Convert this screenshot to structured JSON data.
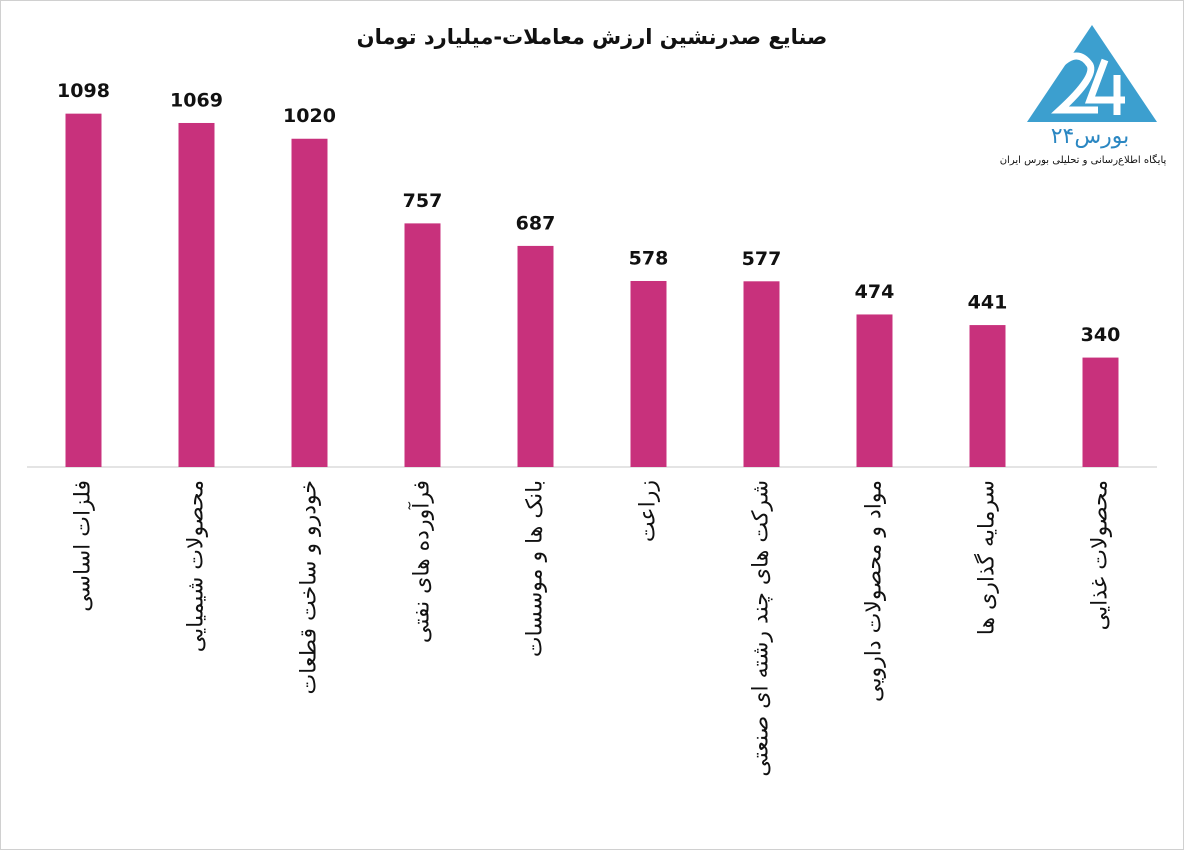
{
  "chart_data": {
    "type": "bar",
    "title": "صنایع صدرنشین ارزش معاملات-میلیارد تومان",
    "categories": [
      "فلزات اساسی",
      "محصولات شیمیایی",
      "خودرو و ساخت قطعات",
      "فرآورده های نفتی",
      "بانک ها و موسسات",
      "زراعت",
      "شرکت های چند رشته ای صنعتی",
      "مواد و محصولات دارویی",
      "سرمایه گذاری ها",
      "محصولات غذایی"
    ],
    "values": [
      1098,
      1069,
      1020,
      757,
      687,
      578,
      577,
      474,
      441,
      340
    ],
    "color": "#c8317c",
    "ylim": [
      0,
      1100
    ],
    "grid": false,
    "annotations": [
      "بورس۲۴",
      "پایگاه اطلاع‌رسانی و تحلیلی بورس ایران"
    ]
  }
}
